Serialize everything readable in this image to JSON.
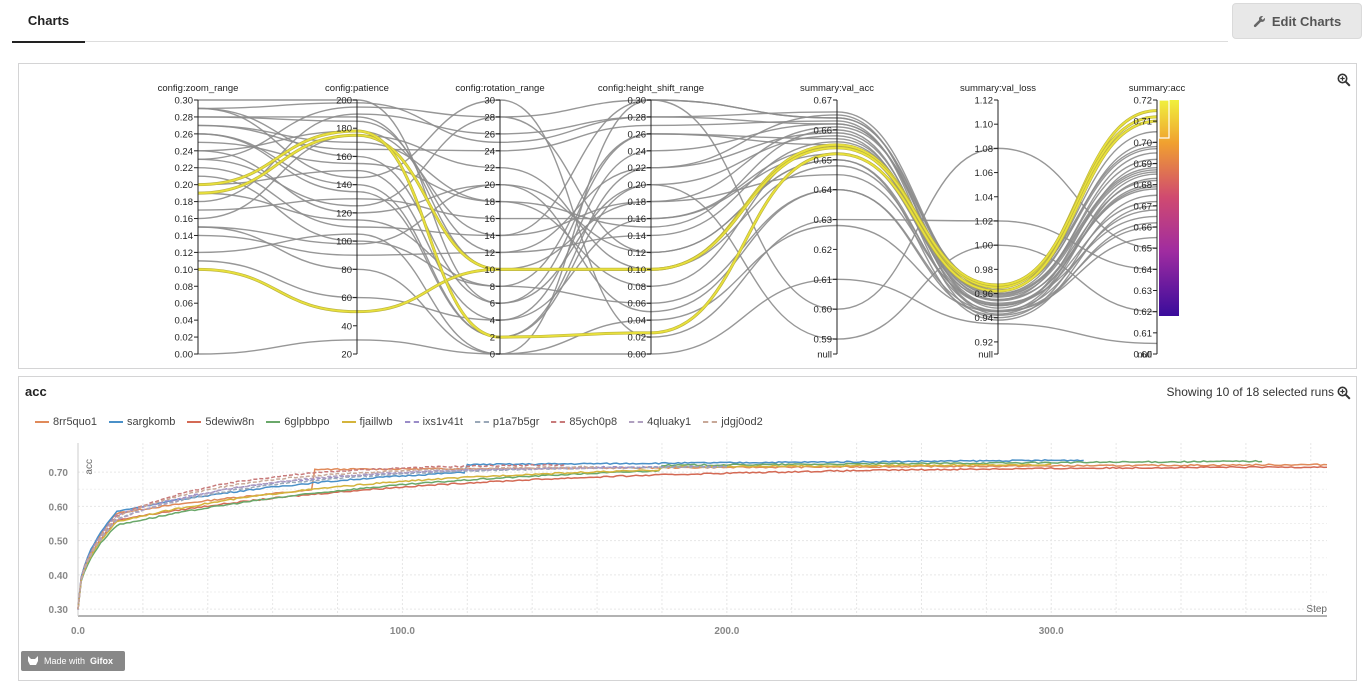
{
  "tab_label": "Charts",
  "edit_button": "Edit Charts",
  "parallel": {
    "axes": [
      {
        "label": "config:zoom_range",
        "ticks": [
          "0.30",
          "0.28",
          "0.26",
          "0.24",
          "0.22",
          "0.20",
          "0.18",
          "0.16",
          "0.14",
          "0.12",
          "0.10",
          "0.08",
          "0.06",
          "0.04",
          "0.02",
          "0.00"
        ],
        "min": 0,
        "max": 0.3,
        "has_null": false
      },
      {
        "label": "config:patience",
        "ticks": [
          "200",
          "180",
          "160",
          "140",
          "120",
          "100",
          "80",
          "60",
          "40",
          "20"
        ],
        "min": 20,
        "max": 200,
        "has_null": false
      },
      {
        "label": "config:rotation_range",
        "ticks": [
          "30",
          "28",
          "26",
          "24",
          "22",
          "20",
          "18",
          "16",
          "14",
          "12",
          "10",
          "8",
          "6",
          "4",
          "2",
          "0"
        ],
        "min": 0,
        "max": 30,
        "has_null": false
      },
      {
        "label": "config:height_shift_range",
        "ticks": [
          "0.30",
          "0.28",
          "0.26",
          "0.24",
          "0.22",
          "0.20",
          "0.18",
          "0.16",
          "0.14",
          "0.12",
          "0.10",
          "0.08",
          "0.06",
          "0.04",
          "0.02",
          "0.00"
        ],
        "min": 0,
        "max": 0.3,
        "has_null": false
      },
      {
        "label": "summary:val_acc",
        "ticks": [
          "0.67",
          "0.66",
          "0.65",
          "0.64",
          "0.63",
          "0.62",
          "0.61",
          "0.60",
          "0.59"
        ],
        "min": 0.585,
        "max": 0.67,
        "has_null": true
      },
      {
        "label": "summary:val_loss",
        "ticks": [
          "1.12",
          "1.10",
          "1.08",
          "1.06",
          "1.04",
          "1.02",
          "1.00",
          "0.98",
          "0.96",
          "0.94",
          "0.92"
        ],
        "min": 0.91,
        "max": 1.12,
        "has_null": true
      },
      {
        "label": "summary:acc",
        "ticks": [
          "0.72",
          "0.71",
          "0.70",
          "0.69",
          "0.68",
          "0.67",
          "0.66",
          "0.65",
          "0.64",
          "0.63",
          "0.62",
          "0.61",
          "0.60"
        ],
        "min": 0.6,
        "max": 0.72,
        "has_null": true
      }
    ],
    "null_label": "null"
  },
  "acc_chart": {
    "title": "acc",
    "showing": "Showing 10 of 18 selected runs",
    "y_axis_label": "acc",
    "x_axis_label": "Step",
    "gifox_text": "Made with",
    "gifox_brand": "Gifox"
  },
  "chart_data": [
    {
      "type": "parallel_coordinates",
      "dimensions": [
        "config:zoom_range",
        "config:patience",
        "config:rotation_range",
        "config:height_shift_range",
        "summary:val_acc",
        "summary:val_loss",
        "summary:acc"
      ],
      "highlighted_runs": [
        {
          "values": [
            0.19,
            175,
            10,
            0.1,
            0.655,
            0.965,
            0.715
          ],
          "color": "#e8e03c"
        },
        {
          "values": [
            0.1,
            50,
            10,
            0.1,
            0.654,
            0.967,
            0.712
          ],
          "color": "#e8e03c"
        },
        {
          "values": [
            0.2,
            178,
            2,
            0.025,
            0.652,
            0.962,
            0.71
          ],
          "color": "#e8e03c"
        }
      ],
      "runs": [
        [
          0.29,
          198,
          25,
          0.28,
          0.662,
          0.955,
          0.695
        ],
        [
          0.28,
          185,
          12,
          0.22,
          0.665,
          0.948,
          0.69
        ],
        [
          0.27,
          170,
          18,
          0.15,
          0.66,
          0.945,
          0.685
        ],
        [
          0.29,
          160,
          6,
          0.26,
          0.655,
          0.95,
          0.68
        ],
        [
          0.26,
          140,
          2,
          0.2,
          0.658,
          0.94,
          0.675
        ],
        [
          0.24,
          120,
          20,
          0.12,
          0.65,
          0.938,
          0.67
        ],
        [
          0.23,
          195,
          28,
          0.3,
          0.664,
          0.96,
          0.7
        ],
        [
          0.22,
          110,
          14,
          0.18,
          0.645,
          0.952,
          0.665
        ],
        [
          0.21,
          100,
          8,
          0.06,
          0.64,
          0.945,
          0.66
        ],
        [
          0.2,
          150,
          4,
          0.24,
          0.662,
          0.958,
          0.692
        ],
        [
          0.18,
          190,
          26,
          0.28,
          0.666,
          0.962,
          0.705
        ],
        [
          0.17,
          130,
          16,
          0.16,
          0.652,
          0.955,
          0.678
        ],
        [
          0.16,
          175,
          22,
          0.1,
          0.648,
          0.95,
          0.672
        ],
        [
          0.15,
          80,
          0,
          0.04,
          0.628,
          0.945,
          0.655
        ],
        [
          0.14,
          90,
          12,
          0.14,
          0.656,
          0.96,
          0.688
        ],
        [
          0.12,
          105,
          0,
          0.3,
          0.6,
          1.08,
          0.65
        ],
        [
          0.29,
          145,
          30,
          0.02,
          0.63,
          1.02,
          0.64
        ],
        [
          0.28,
          188,
          10,
          0.18,
          0.661,
          0.966,
          0.698
        ],
        [
          0.27,
          165,
          24,
          0.27,
          0.663,
          0.943,
          0.683
        ],
        [
          0.3,
          200,
          6,
          0.2,
          0.59,
          1.0,
          0.62
        ],
        [
          0.0,
          30,
          0,
          0.0,
          0.61,
          0.935,
          0.605
        ],
        [
          0.25,
          155,
          18,
          0.08,
          0.655,
          0.957,
          0.686
        ],
        [
          0.26,
          135,
          2,
          0.22,
          0.659,
          0.951,
          0.679
        ],
        [
          0.24,
          178,
          14,
          0.3,
          0.664,
          0.963,
          0.697
        ],
        [
          0.23,
          125,
          28,
          0.12,
          0.65,
          0.946,
          0.668
        ],
        [
          0.19,
          115,
          8,
          0.26,
          0.657,
          0.954,
          0.682
        ],
        [
          0.15,
          98,
          20,
          0.05,
          0.64,
          0.942,
          0.662
        ],
        [
          0.11,
          60,
          4,
          0.16,
          0.654,
          0.959,
          0.687
        ]
      ]
    },
    {
      "type": "line",
      "x_label": "Step",
      "y_label": "acc",
      "xlim": [
        0,
        385
      ],
      "ylim": [
        0.28,
        0.75
      ],
      "x_ticks": [
        0,
        100,
        200,
        300
      ],
      "y_ticks": [
        0.3,
        0.4,
        0.5,
        0.6,
        0.7
      ],
      "series": [
        {
          "name": "8rr5quo1",
          "color": "#e08a5a",
          "dashed": false,
          "end": 385,
          "plateau": 0.722,
          "knee": 0.58,
          "mid": 0.665,
          "jump_at": 73,
          "jump_to": 0.708
        },
        {
          "name": "sargkomb",
          "color": "#4a90c8",
          "dashed": false,
          "end": 310,
          "plateau": 0.735,
          "knee": 0.585,
          "mid": 0.68,
          "jump_at": 120,
          "jump_to": 0.722
        },
        {
          "name": "5dewiw8n",
          "color": "#d46a55",
          "dashed": false,
          "end": 385,
          "plateau": 0.718,
          "knee": 0.56,
          "mid": 0.655,
          "jump_at": null,
          "jump_to": null
        },
        {
          "name": "6glpbbpo",
          "color": "#6aa86a",
          "dashed": false,
          "end": 365,
          "plateau": 0.732,
          "knee": 0.545,
          "mid": 0.652,
          "jump_at": 180,
          "jump_to": 0.72
        },
        {
          "name": "fjaillwb",
          "color": "#d4b43c",
          "dashed": false,
          "end": 300,
          "plateau": 0.722,
          "knee": 0.555,
          "mid": 0.648,
          "jump_at": 180,
          "jump_to": 0.715
        },
        {
          "name": "ixs1v41t",
          "color": "#9a8cc8",
          "dashed": true,
          "end": 200,
          "plateau": 0.72,
          "knee": 0.575,
          "mid": 0.66,
          "jump_at": null,
          "jump_to": null
        },
        {
          "name": "p1a7b5gr",
          "color": "#9aa8b8",
          "dashed": true,
          "end": 200,
          "plateau": 0.718,
          "knee": 0.565,
          "mid": 0.658,
          "jump_at": null,
          "jump_to": null
        },
        {
          "name": "85ych0p8",
          "color": "#c87a7a",
          "dashed": true,
          "end": 150,
          "plateau": 0.724,
          "knee": 0.57,
          "mid": 0.664,
          "jump_at": null,
          "jump_to": null
        },
        {
          "name": "4qluaky1",
          "color": "#b0a0c0",
          "dashed": true,
          "end": 170,
          "plateau": 0.716,
          "knee": 0.56,
          "mid": 0.655,
          "jump_at": null,
          "jump_to": null
        },
        {
          "name": "jdgj0od2",
          "color": "#c8a898",
          "dashed": true,
          "end": 160,
          "plateau": 0.718,
          "knee": 0.57,
          "mid": 0.657,
          "jump_at": null,
          "jump_to": null
        }
      ]
    }
  ]
}
